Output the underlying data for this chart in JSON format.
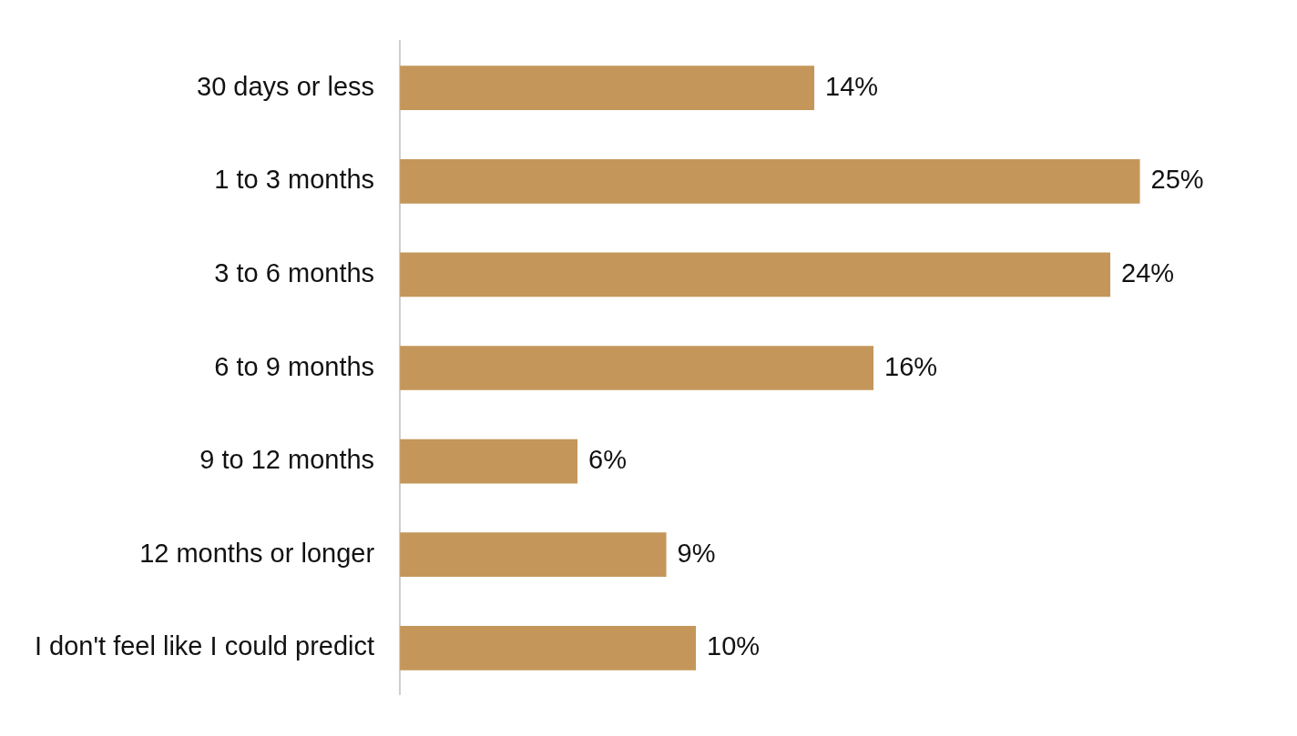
{
  "chart_data": {
    "type": "bar",
    "orientation": "horizontal",
    "categories": [
      "30 days or less",
      "1 to 3 months",
      "3 to 6 months",
      "6 to 9 months",
      "9 to 12 months",
      "12 months or longer",
      "I don't feel like I could predict"
    ],
    "values": [
      14,
      25,
      24,
      16,
      6,
      9,
      10
    ],
    "value_labels": [
      "14%",
      "25%",
      "24%",
      "16%",
      "6%",
      "9%",
      "10%"
    ],
    "color": "#c4965a"
  }
}
